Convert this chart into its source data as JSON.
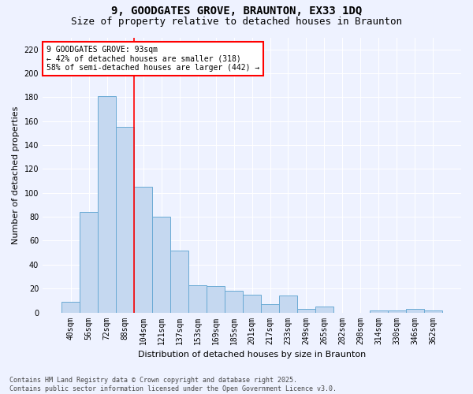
{
  "title": "9, GOODGATES GROVE, BRAUNTON, EX33 1DQ",
  "subtitle": "Size of property relative to detached houses in Braunton",
  "xlabel": "Distribution of detached houses by size in Braunton",
  "ylabel": "Number of detached properties",
  "footnote": "Contains HM Land Registry data © Crown copyright and database right 2025.\nContains public sector information licensed under the Open Government Licence v3.0.",
  "bin_labels": [
    "40sqm",
    "56sqm",
    "72sqm",
    "88sqm",
    "104sqm",
    "121sqm",
    "137sqm",
    "153sqm",
    "169sqm",
    "185sqm",
    "201sqm",
    "217sqm",
    "233sqm",
    "249sqm",
    "265sqm",
    "282sqm",
    "298sqm",
    "314sqm",
    "330sqm",
    "346sqm",
    "362sqm"
  ],
  "bar_heights": [
    9,
    84,
    181,
    155,
    105,
    80,
    52,
    23,
    22,
    18,
    15,
    7,
    14,
    3,
    5,
    0,
    0,
    2,
    2,
    3,
    2
  ],
  "bar_color": "#C5D8F0",
  "bar_edge_color": "#6AAAD4",
  "vline_x": 3.5,
  "vline_color": "red",
  "annotation_text": "9 GOODGATES GROVE: 93sqm\n← 42% of detached houses are smaller (318)\n58% of semi-detached houses are larger (442) →",
  "annotation_box_color": "white",
  "annotation_box_edge": "red",
  "ylim": [
    0,
    230
  ],
  "yticks": [
    0,
    20,
    40,
    60,
    80,
    100,
    120,
    140,
    160,
    180,
    200,
    220
  ],
  "bg_color": "#EEF2FF",
  "grid_color": "#FFFFFF",
  "title_fontsize": 10,
  "subtitle_fontsize": 9,
  "axis_label_fontsize": 8,
  "tick_fontsize": 7,
  "annot_fontsize": 7
}
